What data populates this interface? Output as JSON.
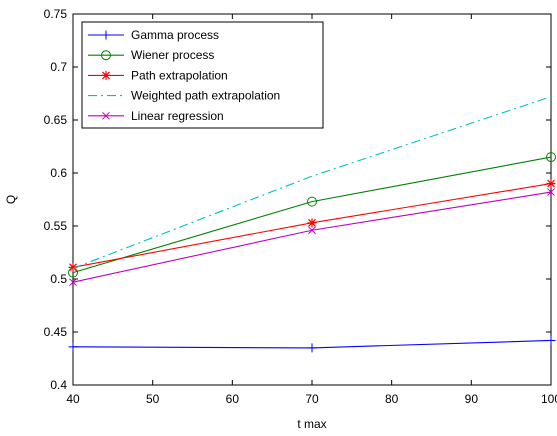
{
  "chart_data": {
    "type": "line",
    "title": "",
    "xlabel": "t max",
    "ylabel": "Q",
    "xlim": [
      40,
      100
    ],
    "ylim": [
      0.4,
      0.75
    ],
    "xticks": [
      40,
      50,
      60,
      70,
      80,
      90,
      100
    ],
    "yticks": [
      0.4,
      0.45,
      0.5,
      0.55,
      0.6,
      0.65,
      0.7,
      0.75
    ],
    "grid": false,
    "legend_position": "top-left",
    "x": [
      40,
      70,
      100
    ],
    "series": [
      {
        "name": "Gamma process",
        "values": [
          0.436,
          0.435,
          0.442
        ],
        "color": "#0000ff",
        "line_style": "solid",
        "marker": "plus"
      },
      {
        "name": "Wiener process",
        "values": [
          0.506,
          0.573,
          0.615
        ],
        "color": "#008000",
        "line_style": "solid",
        "marker": "circle"
      },
      {
        "name": "Path extrapolation",
        "values": [
          0.511,
          0.553,
          0.59
        ],
        "color": "#ff0000",
        "line_style": "solid",
        "marker": "star"
      },
      {
        "name": "Weighted path extrapolation",
        "values": [
          0.51,
          0.597,
          0.672
        ],
        "color": "#00bfbf",
        "line_style": "dashdot",
        "marker": "none"
      },
      {
        "name": "Linear regression",
        "values": [
          0.497,
          0.546,
          0.582
        ],
        "color": "#bf00bf",
        "line_style": "solid",
        "marker": "x"
      }
    ]
  }
}
